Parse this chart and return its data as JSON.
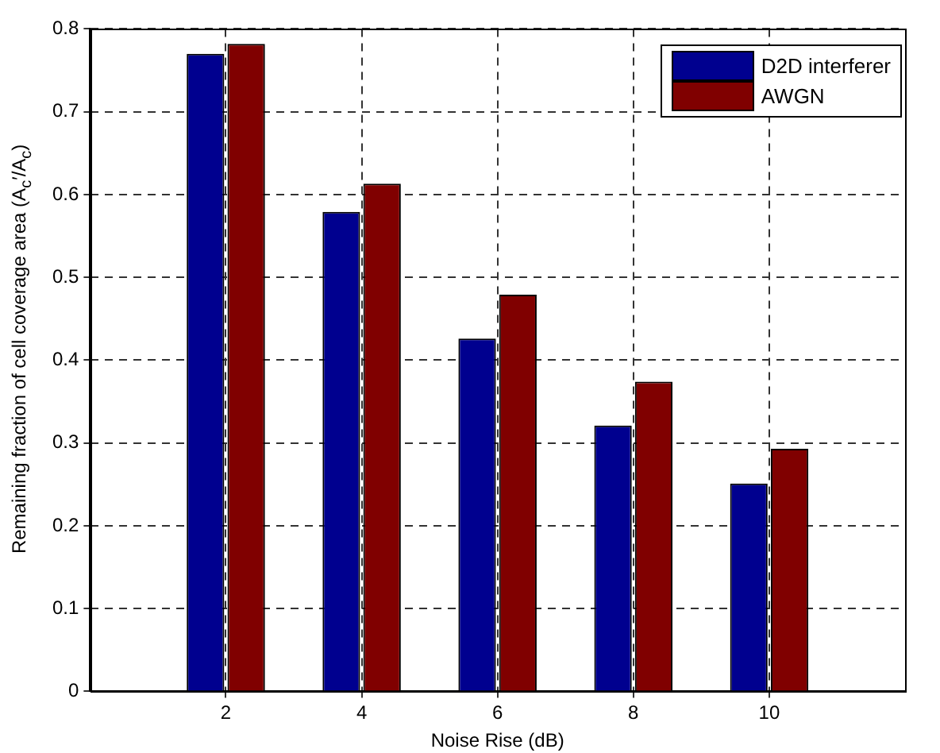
{
  "chart_data": {
    "type": "bar",
    "xlabel": "Noise Rise (dB)",
    "ylabel": "Remaining fraction of cell coverage area (A$_{c}$′/A$_{c}$)",
    "x": [
      2,
      4,
      6,
      8,
      10
    ],
    "xlim": [
      0,
      12
    ],
    "xticks": [
      2,
      4,
      6,
      8,
      10
    ],
    "ylim": [
      0,
      0.8
    ],
    "yticks": [
      0,
      0.1,
      0.2,
      0.3,
      0.4,
      0.5,
      0.6,
      0.7,
      0.8
    ],
    "series": [
      {
        "name": "D2D interferer",
        "color": "#00008f",
        "values": [
          0.77,
          0.579,
          0.426,
          0.321,
          0.251
        ]
      },
      {
        "name": "AWGN",
        "color": "#800000",
        "values": [
          0.782,
          0.613,
          0.479,
          0.374,
          0.293
        ]
      }
    ],
    "grid": true,
    "legend": "top right"
  }
}
